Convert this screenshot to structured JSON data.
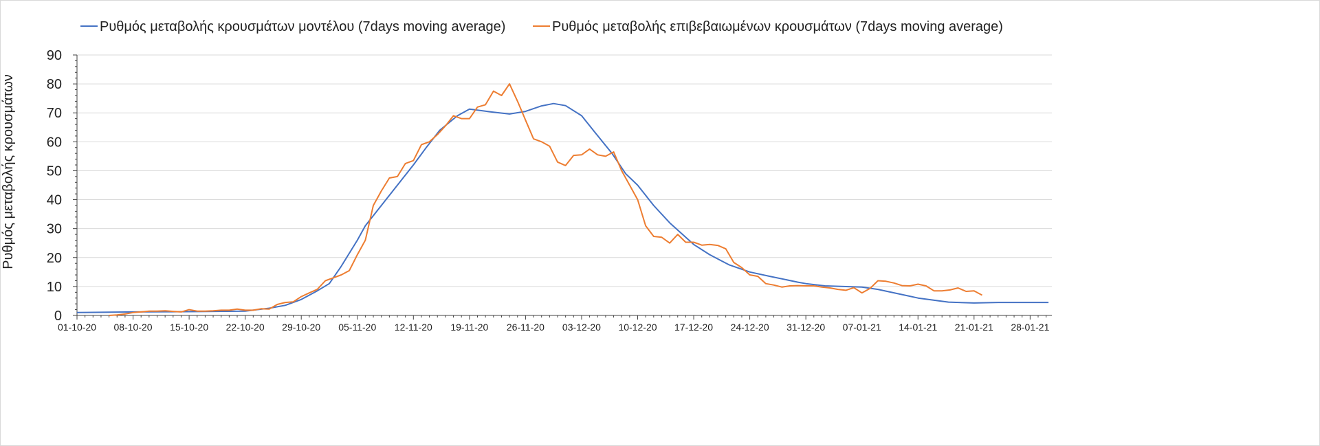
{
  "chart_data": {
    "type": "line",
    "title": "",
    "xlabel": "",
    "ylabel": "Ρυθμός μεταβολής κρουσμάτων",
    "ylim": [
      0,
      90
    ],
    "yticks": [
      0,
      10,
      20,
      30,
      40,
      50,
      60,
      70,
      80,
      90
    ],
    "x_unit": "days since 01-10-20",
    "xlim": [
      0,
      121.5
    ],
    "xtick_labels": [
      "01-10-20",
      "08-10-20",
      "15-10-20",
      "22-10-20",
      "29-10-20",
      "05-11-20",
      "12-11-20",
      "19-11-20",
      "26-11-20",
      "03-12-20",
      "10-12-20",
      "17-12-20",
      "24-12-20",
      "31-12-20",
      "07-01-21",
      "14-01-21",
      "21-01-21",
      "28-01-21"
    ],
    "xtick_step_days": 7,
    "grid": true,
    "legend_position": "top",
    "series": [
      {
        "name": "Ρυθμός μεταβολής κρουσμάτων μοντέλου (7days moving average)",
        "color": "#4472c4",
        "x": [
          0,
          7,
          14,
          21,
          24,
          26,
          28,
          30,
          31.5,
          33,
          35,
          36,
          38,
          40,
          42,
          43.6,
          45.3,
          47.5,
          49,
          51.8,
          54,
          56,
          58,
          59.5,
          61,
          63,
          64.6,
          66.8,
          68.5,
          70,
          72,
          74,
          76,
          77,
          79,
          81.4,
          84,
          86.5,
          90,
          91,
          93.4,
          98,
          100,
          103.7,
          105,
          108.8,
          112,
          115,
          119,
          121.3
        ],
        "y": [
          1,
          1.2,
          1.3,
          1.5,
          2.5,
          3.5,
          5.5,
          8.5,
          11,
          17,
          26,
          31,
          38,
          45,
          52,
          58,
          64,
          69,
          71.3,
          70.3,
          69.6,
          70.5,
          72.4,
          73.2,
          72.5,
          69,
          63.5,
          56,
          49,
          45,
          38,
          32,
          27,
          24.5,
          21,
          17.5,
          15,
          13.5,
          11.5,
          11,
          10.2,
          9.8,
          9,
          6.8,
          6,
          4.6,
          4.3,
          4.5,
          4.5,
          4.5
        ]
      },
      {
        "name": "Ρυθμός μεταβολής επιβεβαιωμένων κρουσμάτων (7days moving average)",
        "color": "#ed7d31",
        "x": [
          4,
          5,
          6,
          7,
          8,
          9,
          10,
          11,
          12,
          13,
          14,
          15,
          16,
          17,
          18,
          19,
          20,
          21,
          22,
          23,
          24,
          25,
          26,
          27,
          28,
          29,
          30,
          31,
          32,
          33,
          34,
          35,
          36,
          37,
          38,
          39,
          40,
          41,
          42,
          43,
          44,
          45,
          46,
          47,
          48,
          49,
          50,
          51,
          52,
          53,
          54,
          55,
          56,
          57,
          58,
          59,
          60,
          61,
          62,
          63,
          64,
          65,
          66,
          67,
          68,
          69,
          70,
          71,
          72,
          73,
          74,
          75,
          76,
          77,
          78,
          79,
          80,
          81,
          82,
          83,
          84,
          85,
          86,
          87,
          88,
          89,
          90,
          91,
          92,
          93,
          94,
          95,
          96,
          97,
          98,
          99,
          100,
          101,
          102,
          103,
          104,
          105,
          106,
          107,
          108,
          109,
          110,
          111,
          112,
          113
        ],
        "y": [
          0,
          0.2,
          0.5,
          1,
          1.2,
          1.5,
          1.5,
          1.6,
          1.4,
          1.2,
          2,
          1.5,
          1.5,
          1.6,
          1.8,
          1.8,
          2.2,
          1.8,
          1.8,
          2.3,
          2.2,
          3.8,
          4.5,
          4.7,
          6.5,
          7.8,
          9,
          12,
          13,
          14,
          15.5,
          21,
          26,
          38,
          43,
          47.5,
          48,
          52.5,
          53.5,
          59,
          60,
          62.5,
          65.5,
          69,
          68,
          68,
          72,
          72.8,
          77.5,
          76,
          80,
          74,
          67.5,
          61,
          60,
          58.5,
          53,
          51.8,
          55.3,
          55.5,
          57.5,
          55.5,
          55,
          56.5,
          50,
          45,
          40,
          31,
          27.3,
          27,
          25,
          28,
          25.3,
          25.3,
          24.3,
          24.5,
          24.2,
          23,
          18.3,
          16.5,
          14,
          13.5,
          11,
          10.5,
          9.8,
          10.2,
          10.3,
          10.2,
          10.2,
          9.8,
          9.5,
          9,
          8.7,
          9.6,
          7.8,
          9.3,
          12,
          11.8,
          11.2,
          10.3,
          10.2,
          10.8,
          10.2,
          8.5,
          8.5,
          8.8,
          9.5,
          8.3,
          8.5,
          7
        ]
      }
    ]
  }
}
